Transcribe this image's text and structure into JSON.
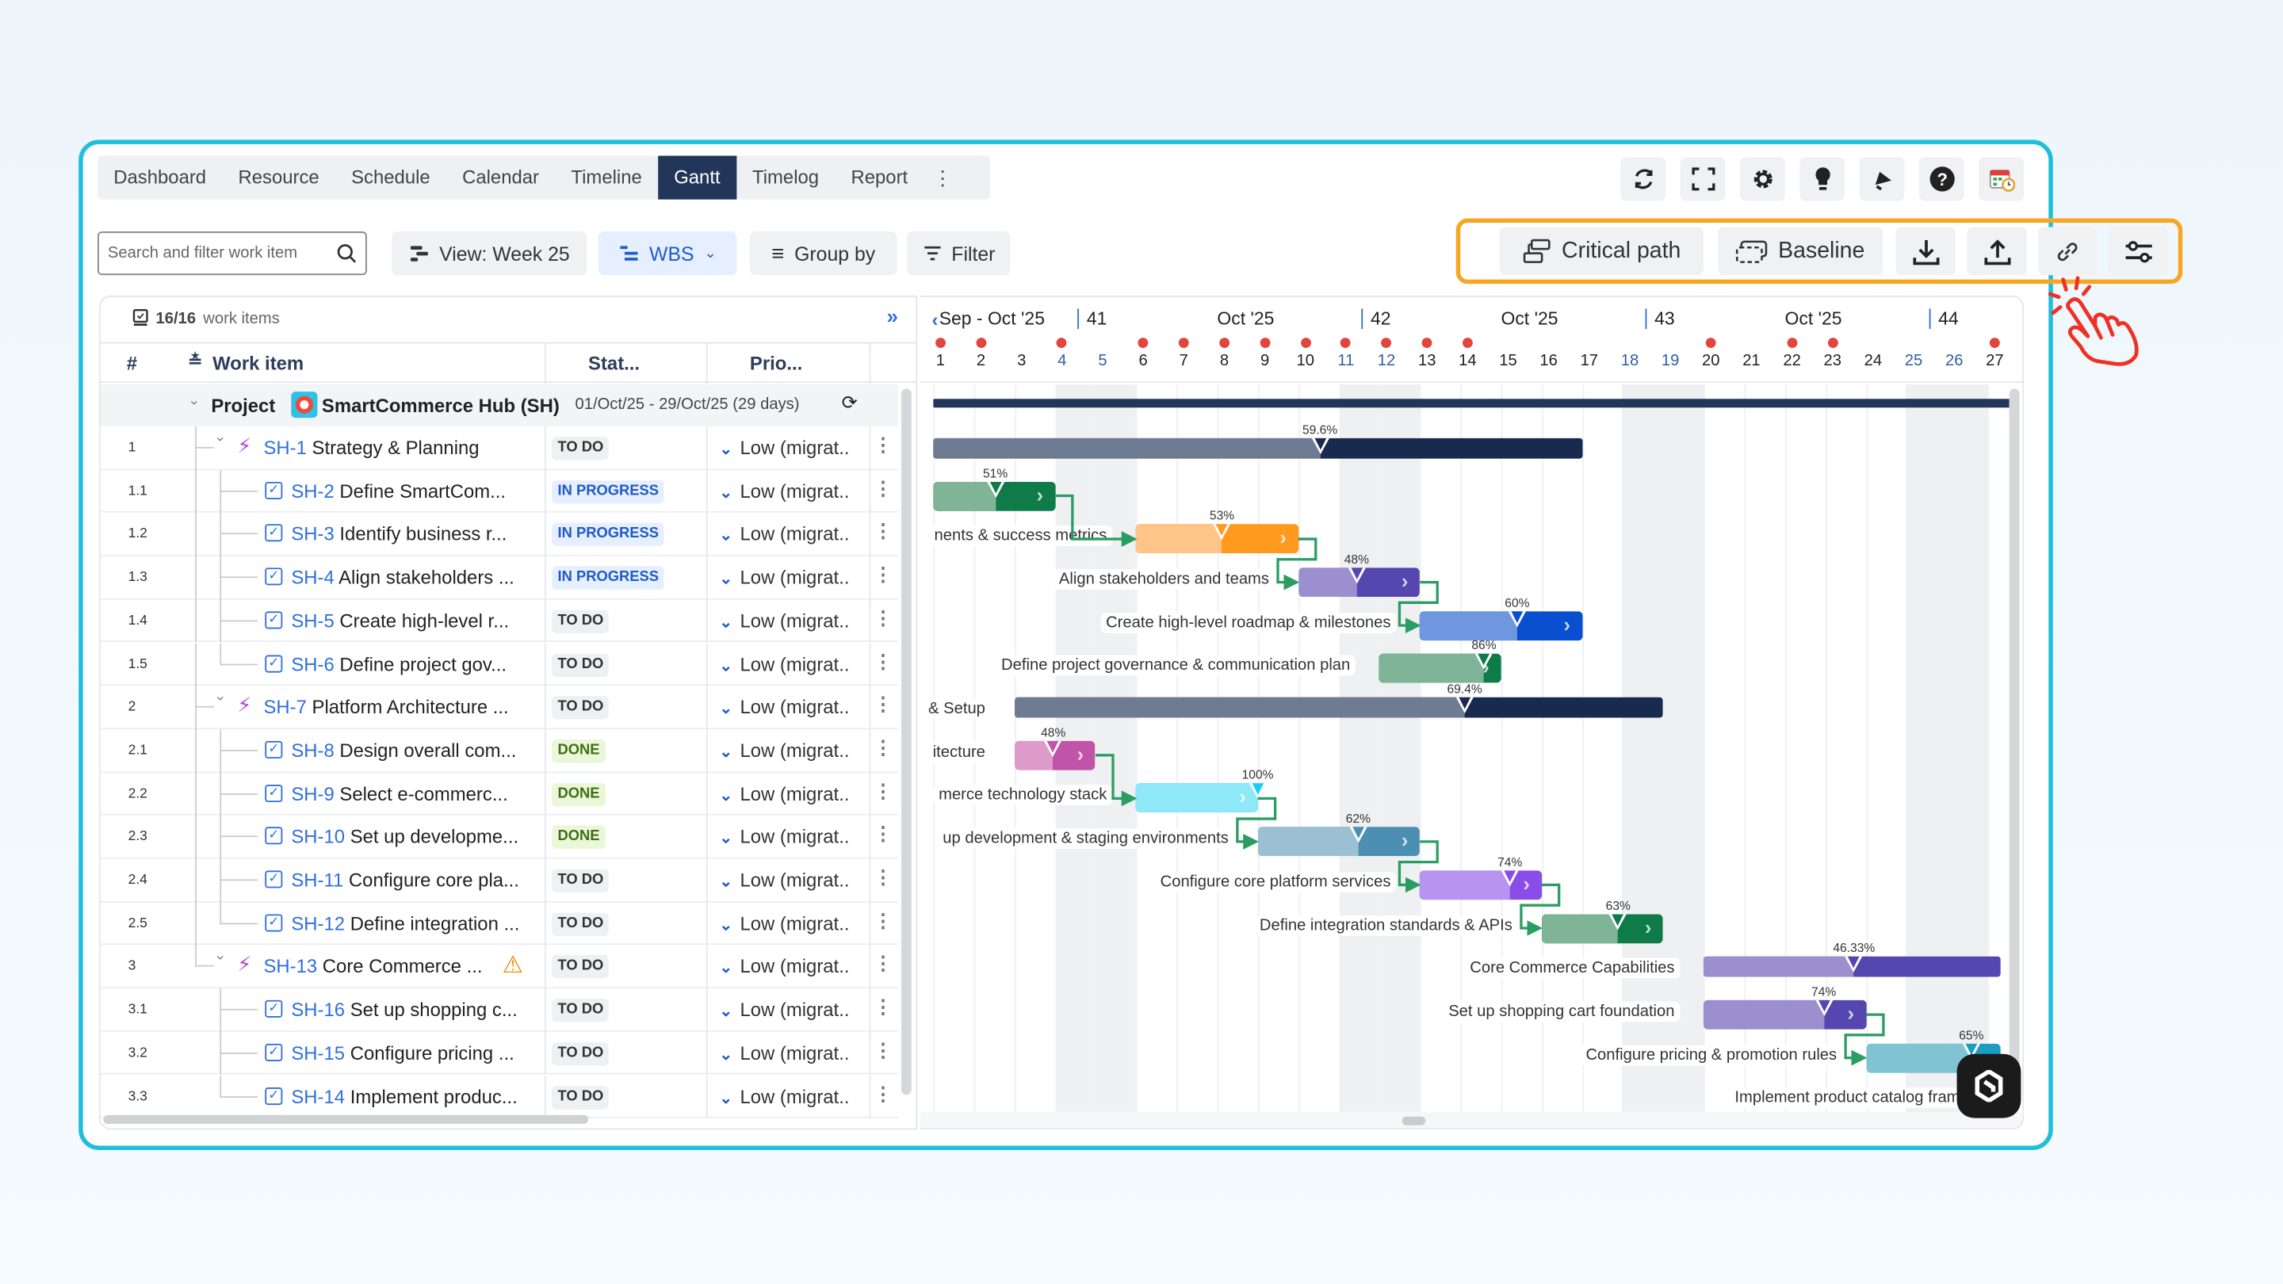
{
  "tabs": [
    "Dashboard",
    "Resource",
    "Schedule",
    "Calendar",
    "Timeline",
    "Gantt",
    "Timelog",
    "Report"
  ],
  "active_tab": "Gantt",
  "header_icons": [
    "refresh-icon",
    "fullscreen-icon",
    "settings-icon",
    "lightbulb-icon",
    "announcement-icon",
    "help-icon",
    "calendar-clock-icon"
  ],
  "toolbar": {
    "search_placeholder": "Search and filter work item",
    "view_label": "View: Week 25",
    "wbs_label": "WBS",
    "group_by_label": "Group by",
    "filter_label": "Filter",
    "critical_path_label": "Critical path",
    "baseline_label": "Baseline",
    "right_icons": [
      "download-icon",
      "upload-icon",
      "link-icon",
      "sliders-icon"
    ]
  },
  "list": {
    "count": "16/16",
    "count_suffix": "work items",
    "columns": {
      "num": "#",
      "work_item": "Work item",
      "status": "Stat...",
      "priority": "Prio..."
    },
    "project": {
      "label": "Project",
      "name": "SmartCommerce Hub (SH)",
      "dates": "01/Oct/25 - 29/Oct/25 (29 days)"
    },
    "rows": [
      {
        "num": "1",
        "key": "SH-1",
        "title": "Strategy & Planning",
        "status": "TO DO",
        "priority": "Low (migrat..",
        "type": "epic"
      },
      {
        "num": "1.1",
        "key": "SH-2",
        "title": "Define SmartCom...",
        "status": "IN PROGRESS",
        "priority": "Low (migrat..",
        "type": "task"
      },
      {
        "num": "1.2",
        "key": "SH-3",
        "title": "Identify business r...",
        "status": "IN PROGRESS",
        "priority": "Low (migrat..",
        "type": "task"
      },
      {
        "num": "1.3",
        "key": "SH-4",
        "title": "Align stakeholders ...",
        "status": "IN PROGRESS",
        "priority": "Low (migrat..",
        "type": "task"
      },
      {
        "num": "1.4",
        "key": "SH-5",
        "title": "Create high-level r...",
        "status": "TO DO",
        "priority": "Low (migrat..",
        "type": "task"
      },
      {
        "num": "1.5",
        "key": "SH-6",
        "title": "Define project gov...",
        "status": "TO DO",
        "priority": "Low (migrat..",
        "type": "task",
        "last": true
      },
      {
        "num": "2",
        "key": "SH-7",
        "title": "Platform Architecture ...",
        "status": "TO DO",
        "priority": "Low (migrat..",
        "type": "epic"
      },
      {
        "num": "2.1",
        "key": "SH-8",
        "title": "Design overall com...",
        "status": "DONE",
        "priority": "Low (migrat..",
        "type": "task"
      },
      {
        "num": "2.2",
        "key": "SH-9",
        "title": "Select e-commerc...",
        "status": "DONE",
        "priority": "Low (migrat..",
        "type": "task"
      },
      {
        "num": "2.3",
        "key": "SH-10",
        "title": "Set up developme...",
        "status": "DONE",
        "priority": "Low (migrat..",
        "type": "task"
      },
      {
        "num": "2.4",
        "key": "SH-11",
        "title": "Configure core pla...",
        "status": "TO DO",
        "priority": "Low (migrat..",
        "type": "task"
      },
      {
        "num": "2.5",
        "key": "SH-12",
        "title": "Define integration ...",
        "status": "TO DO",
        "priority": "Low (migrat..",
        "type": "task",
        "last": true
      },
      {
        "num": "3",
        "key": "SH-13",
        "title": "Core Commerce ...",
        "status": "TO DO",
        "priority": "Low (migrat..",
        "type": "epic",
        "warning": true
      },
      {
        "num": "3.1",
        "key": "SH-16",
        "title": "Set up shopping c...",
        "status": "TO DO",
        "priority": "Low (migrat..",
        "type": "task"
      },
      {
        "num": "3.2",
        "key": "SH-15",
        "title": "Configure pricing ...",
        "status": "TO DO",
        "priority": "Low (migrat..",
        "type": "task"
      },
      {
        "num": "3.3",
        "key": "SH-14",
        "title": "Implement produc...",
        "status": "TO DO",
        "priority": "Low (migrat..",
        "type": "task",
        "last": true
      }
    ]
  },
  "timeline": {
    "weeks": [
      {
        "label": "Sep - Oct '25",
        "day": 1
      },
      {
        "label": "41",
        "day": 5,
        "num": true
      },
      {
        "label": "Oct '25",
        "day": 8
      },
      {
        "label": "42",
        "day": 12,
        "num": true
      },
      {
        "label": "Oct '25",
        "day": 15
      },
      {
        "label": "43",
        "day": 19,
        "num": true
      },
      {
        "label": "Oct '25",
        "day": 22
      },
      {
        "label": "44",
        "day": 26,
        "num": true
      }
    ],
    "days": [
      1,
      2,
      3,
      4,
      5,
      6,
      7,
      8,
      9,
      10,
      11,
      12,
      13,
      14,
      15,
      16,
      17,
      18,
      19,
      20,
      21,
      22,
      23,
      24,
      25,
      26,
      27
    ],
    "weekend_days": [
      4,
      5,
      11,
      12,
      18,
      19,
      25,
      26
    ],
    "marked_days": [
      1,
      2,
      4,
      6,
      7,
      8,
      9,
      10,
      11,
      12,
      13,
      14,
      20,
      22,
      23,
      27
    ]
  },
  "gantt": {
    "project": {
      "start": 1,
      "end": 27,
      "color": "#22365a"
    },
    "tasks": [
      {
        "key": "SH-1",
        "summary": true,
        "start": 1,
        "end": 16,
        "progress": 59.6,
        "pct": "59.6%",
        "label": "",
        "light": "#6f7a93",
        "dark": "#182a4e"
      },
      {
        "key": "SH-2",
        "start": 1,
        "end": 3,
        "progress": 51,
        "pct": "51%",
        "label": "",
        "light": "#7fb596",
        "dark": "#0f7b48"
      },
      {
        "key": "SH-3",
        "start": 6,
        "end": 9,
        "progress": 53,
        "pct": "53%",
        "label": "nents & success metrics",
        "light": "#ffc487",
        "dark": "#ff9a1f"
      },
      {
        "key": "SH-4",
        "start": 10,
        "end": 12,
        "progress": 48,
        "pct": "48%",
        "label": "Align stakeholders and teams",
        "light": "#9b8fd0",
        "dark": "#5546b0"
      },
      {
        "key": "SH-5",
        "start": 13,
        "end": 16,
        "progress": 60,
        "pct": "60%",
        "label": "Create high-level roadmap & milestones",
        "light": "#6f97e0",
        "dark": "#0a4fd0"
      },
      {
        "key": "SH-6",
        "start": 12,
        "end": 14,
        "progress": 86,
        "pct": "86%",
        "label": "Define project governance & communication plan",
        "light": "#7fb596",
        "dark": "#0f7b48"
      },
      {
        "key": "SH-7",
        "summary": true,
        "start": 3,
        "end": 18,
        "progress": 69.4,
        "pct": "69.4%",
        "label": "& Setup",
        "light": "#6f7a93",
        "dark": "#182a4e"
      },
      {
        "key": "SH-8",
        "start": 3,
        "end": 4,
        "progress": 48,
        "pct": "48%",
        "label": "itecture",
        "light": "#dd9bcb",
        "dark": "#c054a8"
      },
      {
        "key": "SH-9",
        "start": 6,
        "end": 8,
        "progress": 100,
        "pct": "100%",
        "label": "merce technology stack",
        "light": "#8ee8f8",
        "dark": "#18d0f0"
      },
      {
        "key": "SH-10",
        "start": 9,
        "end": 12,
        "progress": 62,
        "pct": "62%",
        "label": "up development & staging environments",
        "light": "#9bc0d4",
        "dark": "#4d8fb3"
      },
      {
        "key": "SH-11",
        "start": 13,
        "end": 15,
        "progress": 74,
        "pct": "74%",
        "label": "Configure core platform services",
        "light": "#b794f0",
        "dark": "#8a4de8"
      },
      {
        "key": "SH-12",
        "start": 16,
        "end": 18,
        "progress": 63,
        "pct": "63%",
        "label": "Define integration standards & APIs",
        "light": "#7fb596",
        "dark": "#0f7b48"
      },
      {
        "key": "SH-13",
        "summary": true,
        "start": 20,
        "end": 27,
        "progress": 46.33,
        "pct": "46.33%",
        "label": "Core Commerce Capabilities",
        "light": "#9b8fd0",
        "dark": "#5546b0"
      },
      {
        "key": "SH-16",
        "start": 20,
        "end": 23,
        "progress": 74,
        "pct": "74%",
        "label": "Set up shopping cart foundation",
        "light": "#9b8fd0",
        "dark": "#5546b0"
      },
      {
        "key": "SH-15",
        "start": 24,
        "end": 27,
        "progress": 65,
        "pct": "65%",
        "label": "Configure pricing & promotion rules",
        "light": "#80c4d4",
        "dark": "#1a9dc0"
      },
      {
        "key": "SH-14",
        "start": null,
        "end": null,
        "progress": null,
        "pct": "",
        "label": "Implement product catalog framewor",
        "light": "",
        "dark": ""
      }
    ],
    "dependencies": [
      [
        "SH-2",
        "SH-3"
      ],
      [
        "SH-3",
        "SH-4"
      ],
      [
        "SH-4",
        "SH-5"
      ],
      [
        "SH-8",
        "SH-9"
      ],
      [
        "SH-9",
        "SH-10"
      ],
      [
        "SH-10",
        "SH-11"
      ],
      [
        "SH-11",
        "SH-12"
      ],
      [
        "SH-16",
        "SH-15"
      ]
    ],
    "dependency_color": "#2a9d62"
  },
  "colors": {
    "frame": "#1fbfdc",
    "active_tab": "#22365a",
    "highlight": "#f7a623",
    "accent": "#2f6fdc",
    "cursor": "#ee3124"
  }
}
